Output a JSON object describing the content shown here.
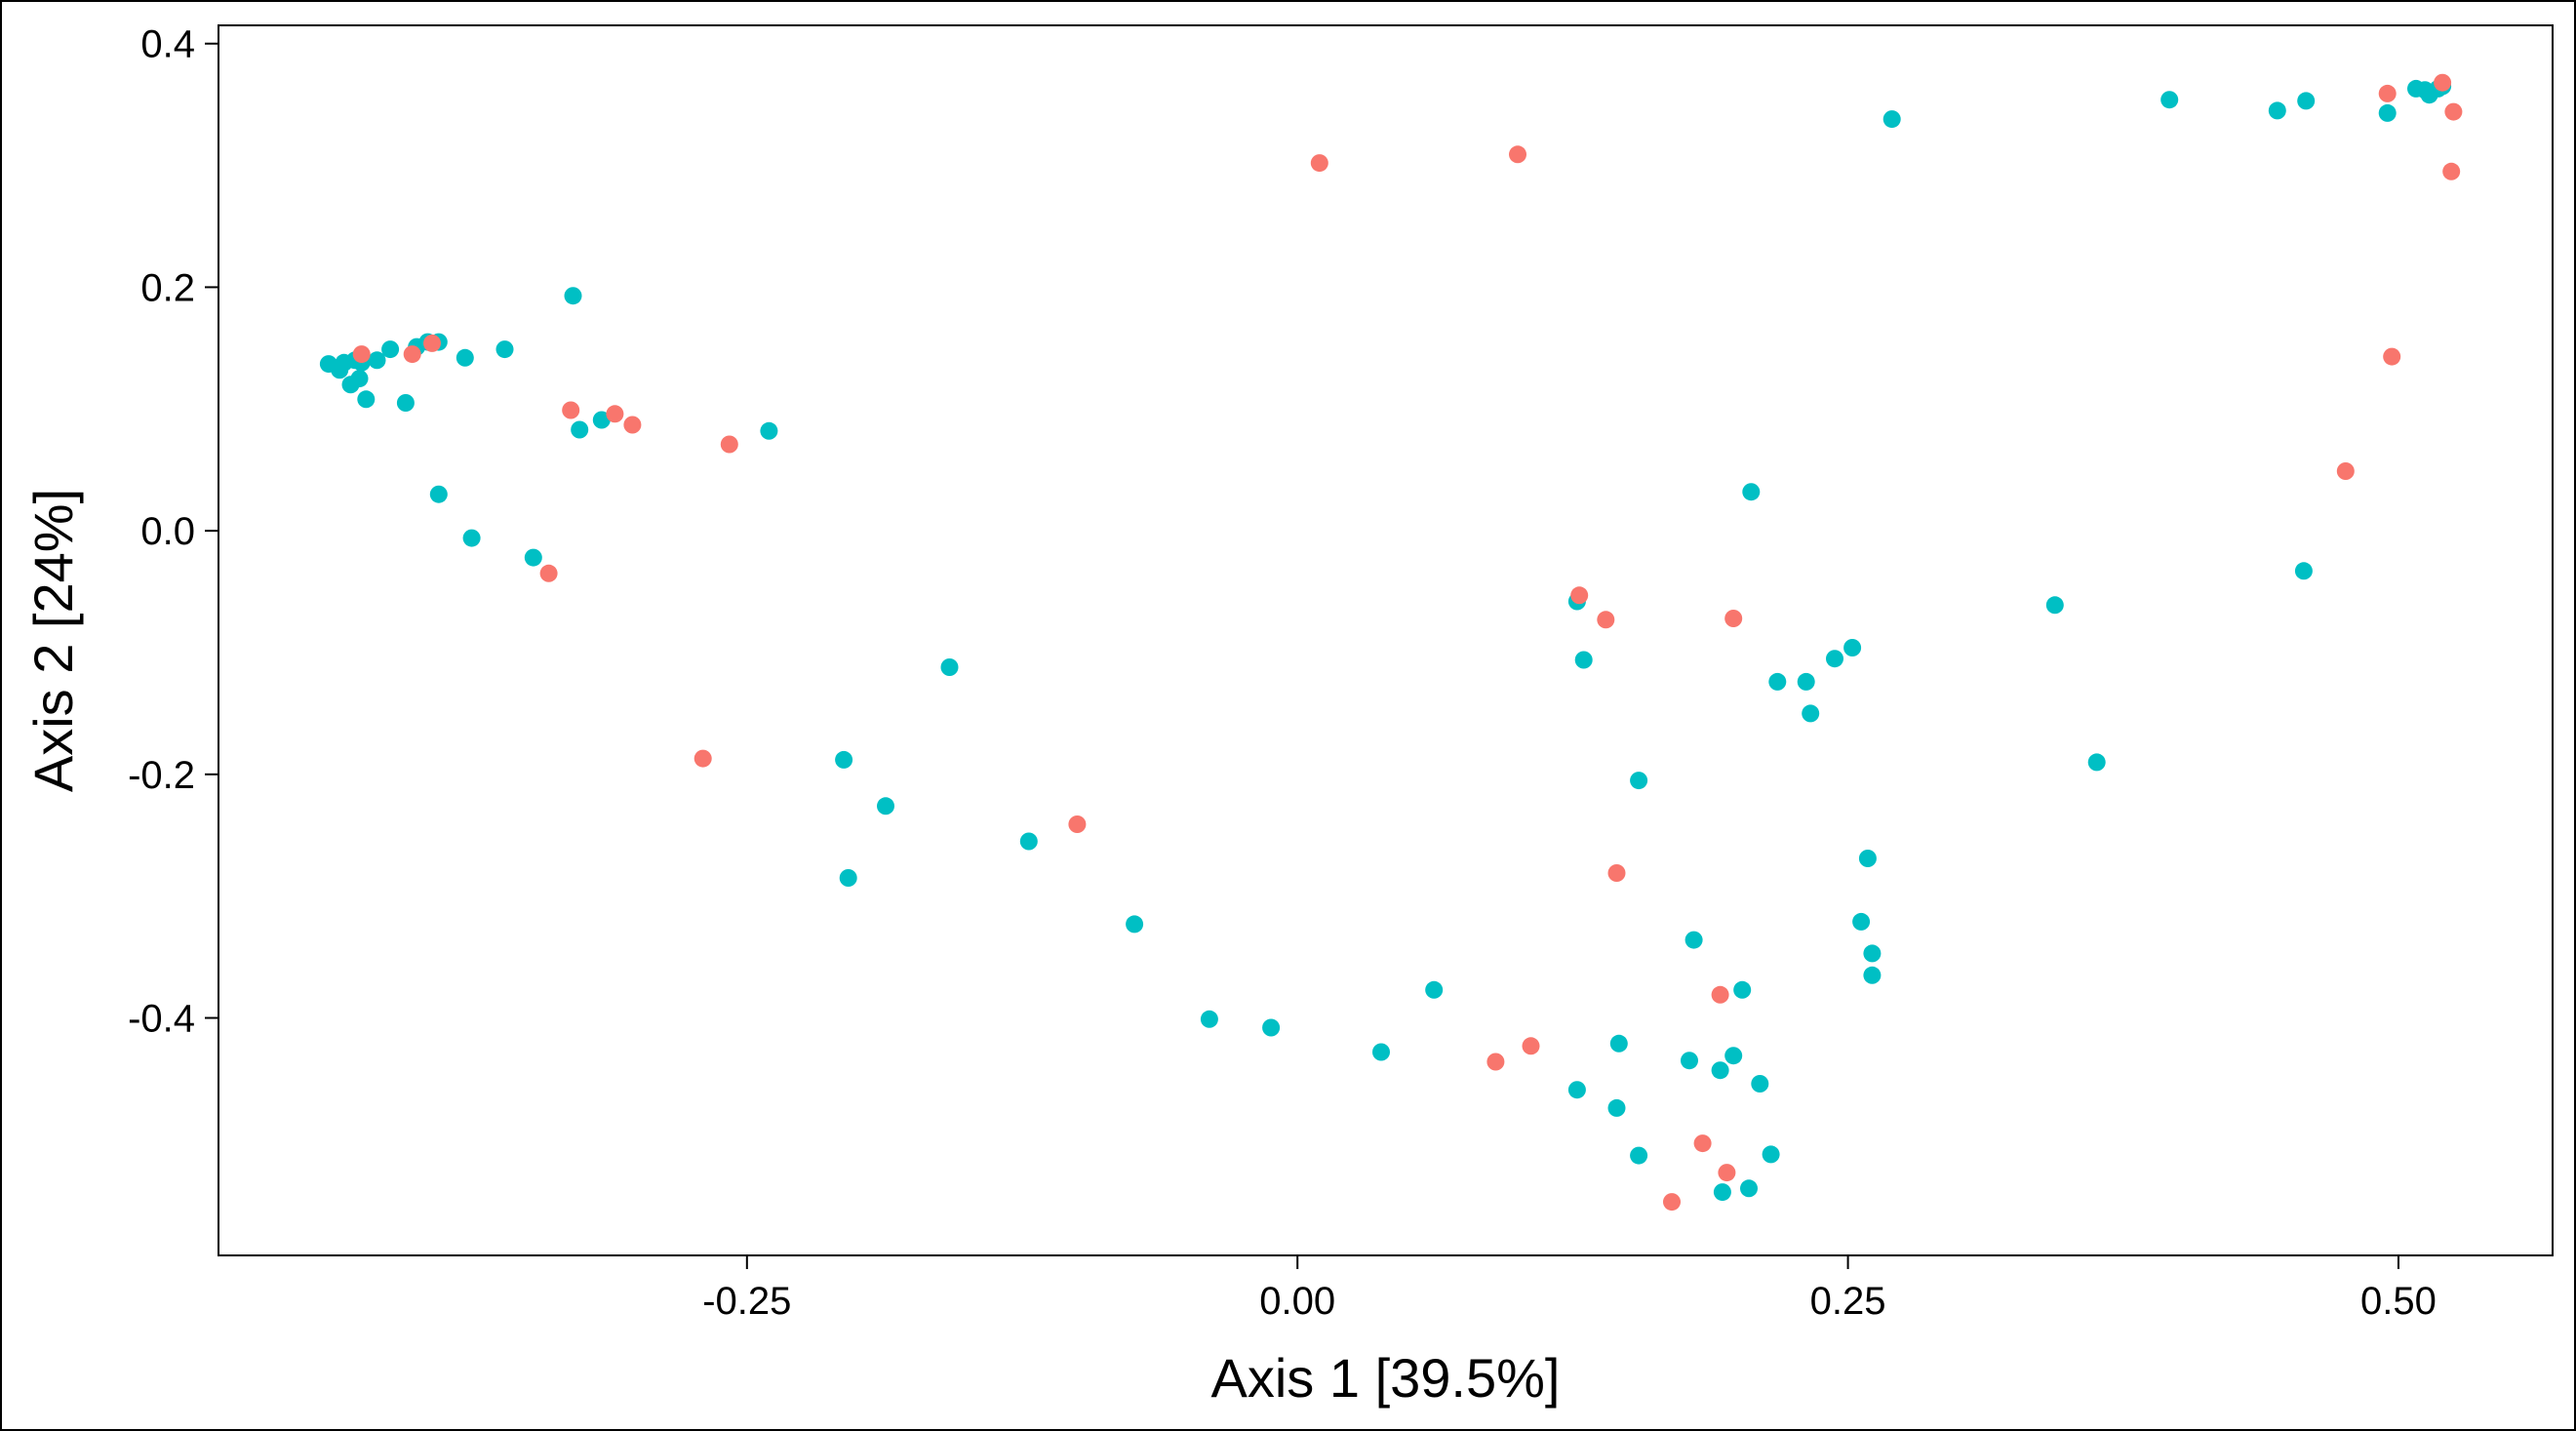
{
  "chart_data": {
    "type": "scatter",
    "title": "",
    "xlabel": "Axis 1 [39.5%]",
    "ylabel": "Axis 2 [24%]",
    "xlim": [
      -0.49,
      0.57
    ],
    "ylim": [
      -0.595,
      0.415
    ],
    "xticks": [
      {
        "value": -0.25,
        "label": "-0.25"
      },
      {
        "value": 0.0,
        "label": "0.00"
      },
      {
        "value": 0.25,
        "label": "0.25"
      },
      {
        "value": 0.5,
        "label": "0.50"
      }
    ],
    "yticks": [
      {
        "value": 0.4,
        "label": "0.4"
      },
      {
        "value": 0.2,
        "label": "0.2"
      },
      {
        "value": 0.0,
        "label": "0.0"
      },
      {
        "value": -0.2,
        "label": "-0.2"
      },
      {
        "value": -0.4,
        "label": "-0.4"
      }
    ],
    "grid": false,
    "legend": "none",
    "colors": {
      "group_a": "#F8766D",
      "group_b": "#00BFC4",
      "axes": "#000000"
    },
    "series": [
      {
        "color": "#00BFC4",
        "points": [
          [
            -0.44,
            0.137
          ],
          [
            -0.435,
            0.132
          ],
          [
            -0.433,
            0.138
          ],
          [
            -0.428,
            0.14
          ],
          [
            -0.425,
            0.138
          ],
          [
            -0.43,
            0.12
          ],
          [
            -0.426,
            0.125
          ],
          [
            -0.423,
            0.108
          ],
          [
            -0.418,
            0.14
          ],
          [
            -0.412,
            0.149
          ],
          [
            -0.405,
            0.105
          ],
          [
            -0.4,
            0.151
          ],
          [
            -0.395,
            0.155
          ],
          [
            -0.39,
            0.155
          ],
          [
            -0.39,
            0.03
          ],
          [
            -0.378,
            0.142
          ],
          [
            -0.375,
            -0.006
          ],
          [
            -0.36,
            0.149
          ],
          [
            -0.347,
            -0.022
          ],
          [
            -0.329,
            0.193
          ],
          [
            -0.326,
            0.083
          ],
          [
            -0.316,
            0.091
          ],
          [
            -0.24,
            0.082
          ],
          [
            -0.206,
            -0.188
          ],
          [
            -0.204,
            -0.285
          ],
          [
            -0.187,
            -0.226
          ],
          [
            -0.158,
            -0.112
          ],
          [
            -0.122,
            -0.255
          ],
          [
            -0.074,
            -0.323
          ],
          [
            -0.04,
            -0.401
          ],
          [
            -0.012,
            -0.408
          ],
          [
            0.038,
            -0.428
          ],
          [
            0.062,
            -0.377
          ],
          [
            0.127,
            -0.058
          ],
          [
            0.13,
            -0.106
          ],
          [
            0.127,
            -0.459
          ],
          [
            0.145,
            -0.474
          ],
          [
            0.146,
            -0.421
          ],
          [
            0.155,
            -0.205
          ],
          [
            0.155,
            -0.513
          ],
          [
            0.178,
            -0.435
          ],
          [
            0.18,
            -0.336
          ],
          [
            0.192,
            -0.443
          ],
          [
            0.193,
            -0.543
          ],
          [
            0.198,
            -0.431
          ],
          [
            0.202,
            -0.377
          ],
          [
            0.205,
            -0.54
          ],
          [
            0.206,
            0.032
          ],
          [
            0.21,
            -0.454
          ],
          [
            0.215,
            -0.512
          ],
          [
            0.218,
            -0.124
          ],
          [
            0.231,
            -0.124
          ],
          [
            0.233,
            -0.15
          ],
          [
            0.244,
            -0.105
          ],
          [
            0.252,
            -0.096
          ],
          [
            0.256,
            -0.321
          ],
          [
            0.259,
            -0.269
          ],
          [
            0.261,
            -0.347
          ],
          [
            0.261,
            -0.365
          ],
          [
            0.27,
            0.338
          ],
          [
            0.344,
            -0.061
          ],
          [
            0.363,
            -0.19
          ],
          [
            0.396,
            0.354
          ],
          [
            0.445,
            0.345
          ],
          [
            0.458,
            0.353
          ],
          [
            0.457,
            -0.033
          ],
          [
            0.495,
            0.343
          ],
          [
            0.508,
            0.363
          ],
          [
            0.512,
            0.362
          ],
          [
            0.514,
            0.358
          ],
          [
            0.518,
            0.363
          ],
          [
            0.52,
            0.365
          ]
        ]
      },
      {
        "color": "#F8766D",
        "points": [
          [
            -0.425,
            0.145
          ],
          [
            -0.402,
            0.145
          ],
          [
            -0.393,
            0.154
          ],
          [
            -0.34,
            -0.035
          ],
          [
            -0.33,
            0.099
          ],
          [
            -0.31,
            0.096
          ],
          [
            -0.302,
            0.087
          ],
          [
            -0.258,
            0.071
          ],
          [
            -0.27,
            -0.187
          ],
          [
            -0.1,
            -0.241
          ],
          [
            0.01,
            0.302
          ],
          [
            0.1,
            0.309
          ],
          [
            0.09,
            -0.436
          ],
          [
            0.106,
            -0.423
          ],
          [
            0.128,
            -0.053
          ],
          [
            0.14,
            -0.073
          ],
          [
            0.145,
            -0.281
          ],
          [
            0.17,
            -0.551
          ],
          [
            0.184,
            -0.503
          ],
          [
            0.192,
            -0.381
          ],
          [
            0.195,
            -0.527
          ],
          [
            0.198,
            -0.072
          ],
          [
            0.476,
            0.049
          ],
          [
            0.497,
            0.143
          ],
          [
            0.495,
            0.359
          ],
          [
            0.52,
            0.368
          ],
          [
            0.525,
            0.344
          ],
          [
            0.524,
            0.295
          ]
        ]
      }
    ]
  }
}
